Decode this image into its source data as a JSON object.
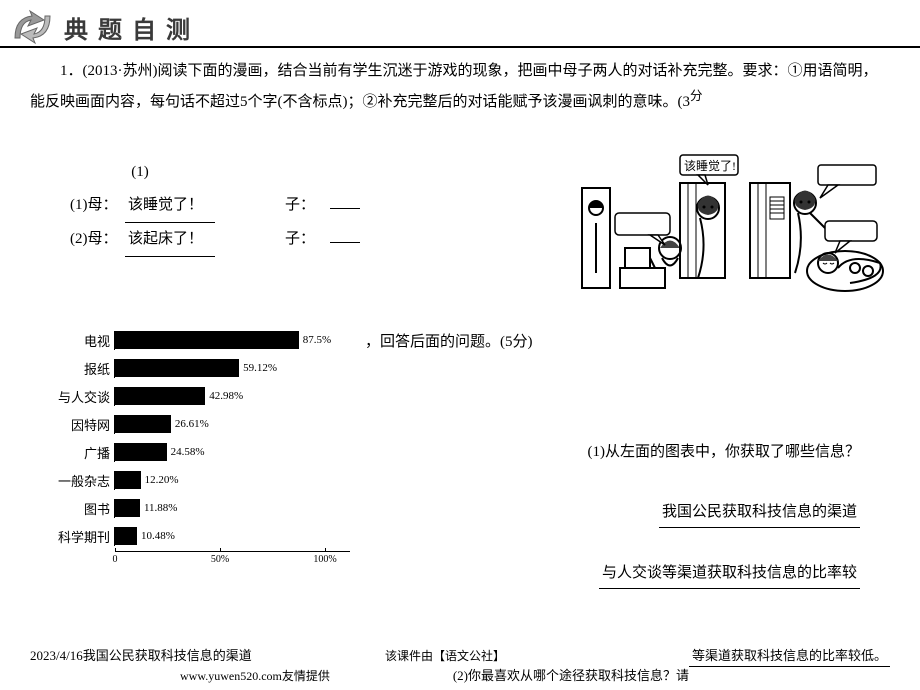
{
  "header": {
    "title": "典题自测"
  },
  "q1": {
    "prefix": "1．(2013·苏州)阅读下面的漫画，结合当前有学生沉迷于游戏的现象，把画中母子两人的对话补充完整。要求：①用语简明，能反映画面内容，每句话不超过5个字(不含标点)；②补充完整后的对话能赋予该漫画讽刺的意味。(3",
    "scoresuffix": "分",
    "sub1": "(1)",
    "row1_label": "(1)母：",
    "row1_ans": "该睡觉了！",
    "row1_son": "子：",
    "row2_label": "(2)母：",
    "row2_ans": "该起床了！",
    "row2_son": "子：",
    "bubble": "该睡觉了!"
  },
  "q2": {
    "prompt": "，回答后面的问题。(5分)",
    "sub1": "(1)从左面的图表中，你获取了哪些信息？",
    "ans1": "我国公民获取科技信息的渠道",
    "ans2": "与人交谈等渠道获取科技信息的比率较",
    "ans3": "等渠道获取科技信息的比率较低。",
    "sub2": "(2)你最喜欢从哪个途径获取科技信息？请"
  },
  "chart": {
    "title": "我国公民获取科技信息的渠道",
    "max": 100,
    "items": [
      {
        "label": "电视",
        "value": 87.5,
        "text": "87.5%"
      },
      {
        "label": "报纸",
        "value": 59.12,
        "text": "59.12%"
      },
      {
        "label": "与人交谈",
        "value": 42.98,
        "text": "42.98%"
      },
      {
        "label": "因特网",
        "value": 26.61,
        "text": "26.61%"
      },
      {
        "label": "广播",
        "value": 24.58,
        "text": "24.58%"
      },
      {
        "label": "一般杂志",
        "value": 12.2,
        "text": "12.20%"
      },
      {
        "label": "图书",
        "value": 11.88,
        "text": "11.88%"
      },
      {
        "label": "科学期刊",
        "value": 10.48,
        "text": "10.48%"
      }
    ],
    "axis": [
      "0",
      "50%",
      "100%"
    ],
    "bar_color": "#000000",
    "bg_color": "#ffffff"
  },
  "footer": {
    "date": "2023/4/16",
    "chart_title": "我国公民获取科技信息的渠道",
    "credit": "该课件由【语文公社】",
    "url": "www.yuwen520.com友情提供"
  }
}
